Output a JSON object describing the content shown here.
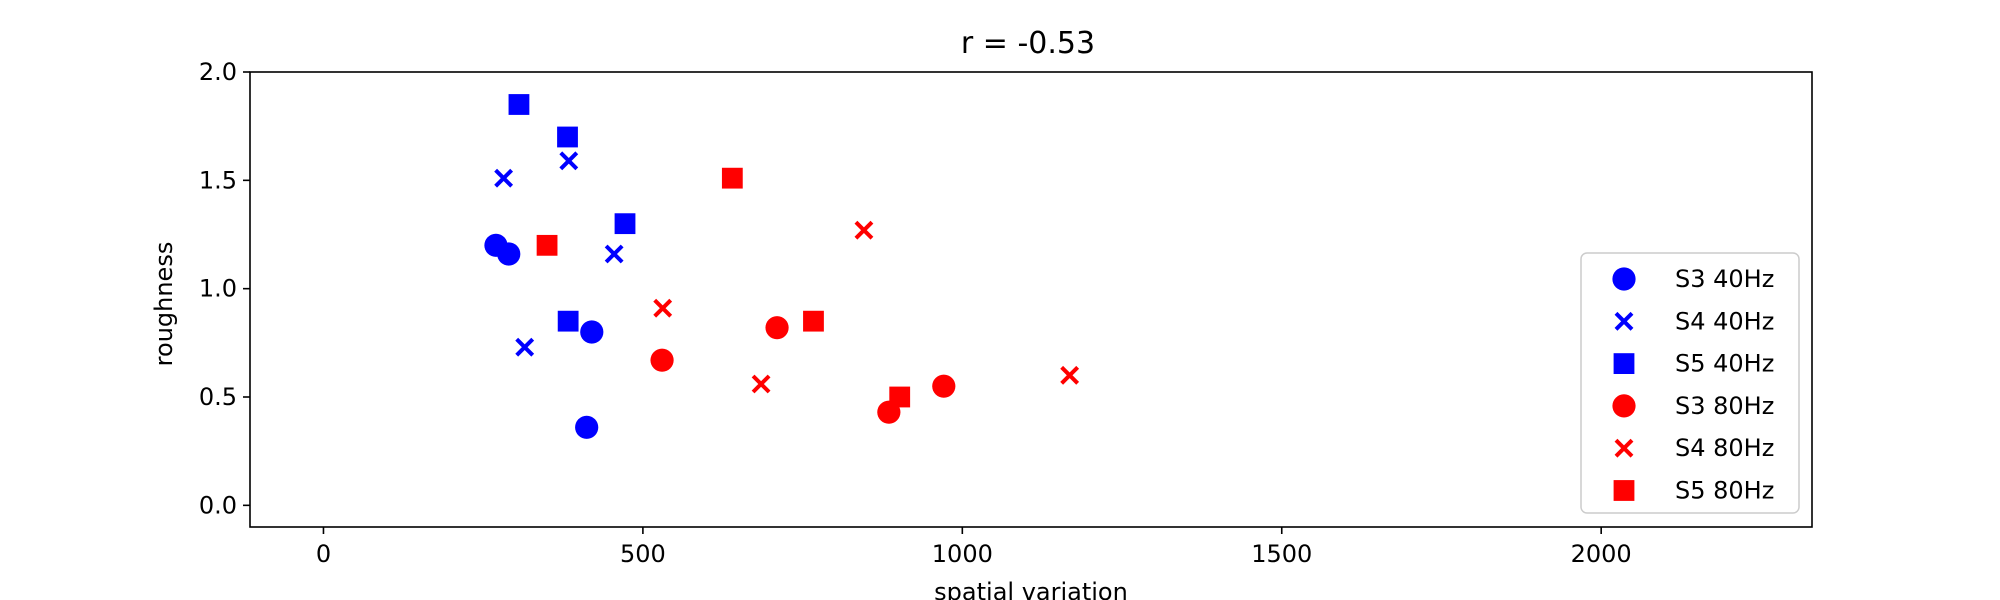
{
  "chart_data": {
    "type": "scatter",
    "title": "r = -0.53",
    "xlabel": "spatial variation",
    "ylabel": "roughness",
    "xlim": [
      -115,
      2330
    ],
    "ylim": [
      -0.1,
      2.0
    ],
    "xticks": [
      0,
      500,
      1000,
      1500,
      2000
    ],
    "yticks": [
      0.0,
      0.5,
      1.0,
      1.5,
      2.0
    ],
    "xtick_labels": [
      "0",
      "500",
      "1000",
      "1500",
      "2000"
    ],
    "ytick_labels": [
      "0.0",
      "0.5",
      "1.0",
      "1.5",
      "2.0"
    ],
    "grid": false,
    "legend_position": "lower-right",
    "series": [
      {
        "name": "S3 40Hz",
        "color": "#0000ff",
        "marker": "circle",
        "points": [
          [
            270,
            1.2
          ],
          [
            290,
            1.16
          ],
          [
            420,
            0.8
          ],
          [
            412,
            0.36
          ]
        ]
      },
      {
        "name": "S4 40Hz",
        "color": "#0000ff",
        "marker": "x",
        "points": [
          [
            282,
            1.51
          ],
          [
            315,
            0.73
          ],
          [
            384,
            1.59
          ],
          [
            455,
            1.16
          ]
        ]
      },
      {
        "name": "S5 40Hz",
        "color": "#0000ff",
        "marker": "square",
        "points": [
          [
            306,
            1.85
          ],
          [
            382,
            1.7
          ],
          [
            472,
            1.3
          ],
          [
            383,
            0.85
          ]
        ]
      },
      {
        "name": "S3 80Hz",
        "color": "#ff0000",
        "marker": "circle",
        "points": [
          [
            530,
            0.67
          ],
          [
            710,
            0.82
          ],
          [
            885,
            0.43
          ],
          [
            971,
            0.55
          ]
        ]
      },
      {
        "name": "S4 80Hz",
        "color": "#ff0000",
        "marker": "x",
        "points": [
          [
            531,
            0.91
          ],
          [
            685,
            0.56
          ],
          [
            846,
            1.27
          ],
          [
            1168,
            0.6
          ]
        ]
      },
      {
        "name": "S5 80Hz",
        "color": "#ff0000",
        "marker": "square",
        "points": [
          [
            350,
            1.2
          ],
          [
            640,
            1.51
          ],
          [
            767,
            0.85
          ],
          [
            902,
            0.5
          ]
        ]
      }
    ]
  }
}
